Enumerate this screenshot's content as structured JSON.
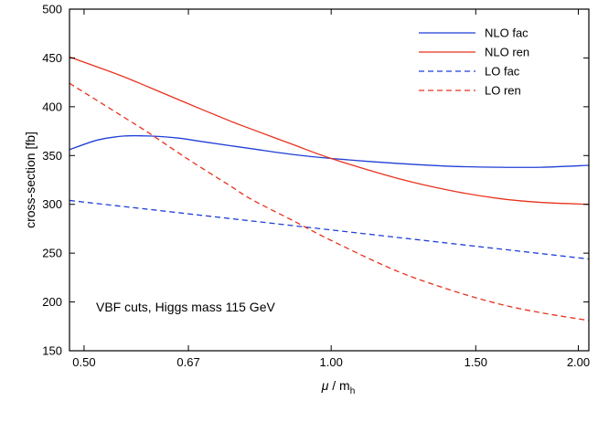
{
  "chart_data": {
    "type": "line",
    "xlabel_mu": "μ",
    "xlabel_sep": " / ",
    "xlabel_m": "m",
    "xlabel_sub": "h",
    "ylabel": "cross-section [fb]",
    "xscale": "log",
    "xlim": [
      0.48,
      2.06
    ],
    "ylim": [
      150,
      500
    ],
    "x_ticks": [
      0.5,
      0.67,
      1.0,
      1.5,
      2.0
    ],
    "x_tick_labels": [
      "0.50",
      "0.67",
      "1.00",
      "1.50",
      "2.00"
    ],
    "y_ticks": [
      150,
      200,
      250,
      300,
      350,
      400,
      450,
      500
    ],
    "y_tick_labels": [
      "150",
      "200",
      "250",
      "300",
      "350",
      "400",
      "450",
      "500"
    ],
    "annotation": "VBF cuts, Higgs mass 115 GeV",
    "legend_position": "top-right",
    "series": [
      {
        "name": "NLO fac",
        "color": "#1f3fd6",
        "dash": "solid",
        "x": [
          0.48,
          0.52,
          0.56,
          0.6,
          0.65,
          0.7,
          0.8,
          0.9,
          1.0,
          1.2,
          1.4,
          1.6,
          1.8,
          2.06
        ],
        "y": [
          356,
          366,
          370,
          370,
          368,
          364,
          357,
          351,
          347,
          342,
          339,
          338,
          338,
          340
        ]
      },
      {
        "name": "NLO ren",
        "color": "#e8321e",
        "dash": "solid",
        "x": [
          0.48,
          0.55,
          0.6,
          0.67,
          0.75,
          0.8,
          0.9,
          1.0,
          1.2,
          1.4,
          1.6,
          1.8,
          2.06
        ],
        "y": [
          451,
          433,
          420,
          403,
          386,
          377,
          361,
          347,
          327,
          314,
          306,
          302,
          300
        ]
      },
      {
        "name": "LO fac",
        "color": "#1f3fd6",
        "dash": "dashed",
        "x": [
          0.48,
          2.06
        ],
        "y": [
          304,
          244
        ]
      },
      {
        "name": "LO ren",
        "color": "#e8321e",
        "dash": "dashed",
        "x": [
          0.48,
          0.55,
          0.6,
          0.67,
          0.75,
          0.8,
          0.9,
          1.0,
          1.2,
          1.4,
          1.6,
          1.8,
          2.06
        ],
        "y": [
          424,
          393,
          373,
          346,
          320,
          305,
          283,
          263,
          232,
          212,
          198,
          189,
          181
        ]
      }
    ]
  }
}
